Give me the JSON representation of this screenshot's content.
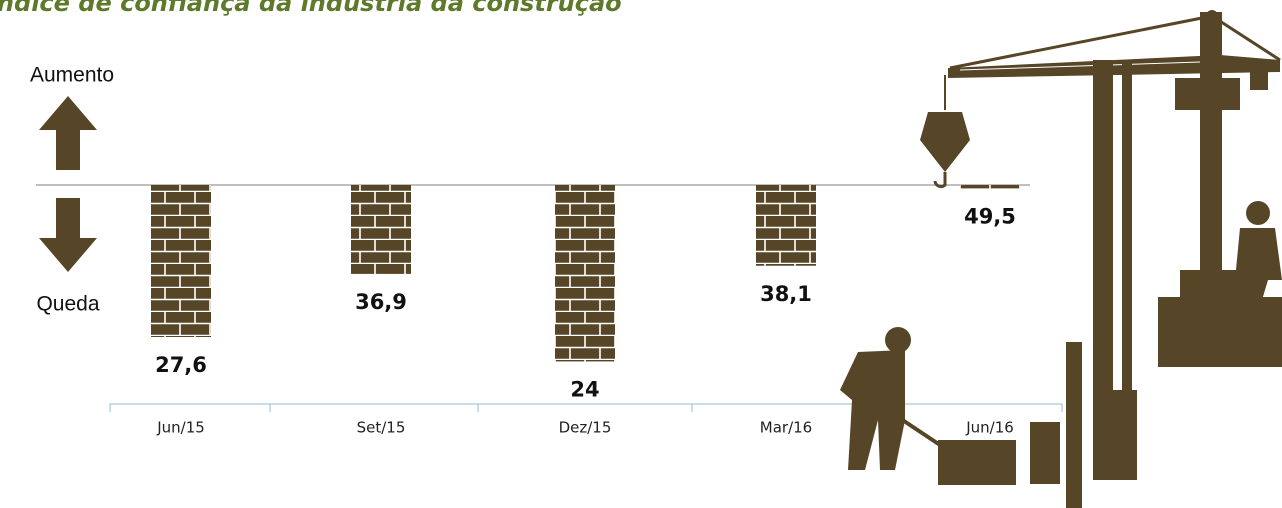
{
  "chart_data": {
    "type": "bar",
    "title": "Índice de confiança da indústria da construção",
    "up_label": "Aumento",
    "down_label": "Queda",
    "categories": [
      "Jun/15",
      "Set/15",
      "Dez/15",
      "Mar/16",
      "Jun/16"
    ],
    "values": [
      27.6,
      36.9,
      24,
      38.1,
      49.5
    ],
    "value_labels": [
      "27,6",
      "36,9",
      "24",
      "38,1",
      "49,5"
    ],
    "color": "#574527",
    "ylim": [
      22,
      50
    ]
  }
}
